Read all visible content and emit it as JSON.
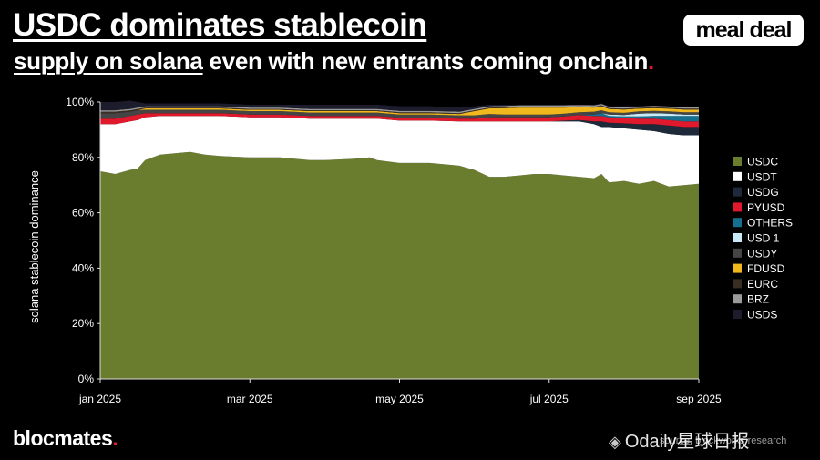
{
  "header": {
    "title_line1": "USDC dominates stablecoin",
    "title_line2_underlined": "supply on solana",
    "title_line2_rest": " even with new entrants coming onchain",
    "title_dot": "."
  },
  "logo_text": "meal deal",
  "footer": {
    "brand": "blocmates",
    "brand_dot": ".",
    "source": "source: blockworks research",
    "watermark": "Odaily星球日报",
    "watermark_icon": "binance-logo-icon"
  },
  "colors": {
    "USDC": "#6a7d2f",
    "USDT": "#ffffff",
    "USDG": "#1e2a3a",
    "PYUSD": "#e0192d",
    "OTHERS": "#156f8f",
    "USD 1": "#c7eaf6",
    "USDY": "#454545",
    "FDUSD": "#f0b81c",
    "EURC": "#3a2e23",
    "BRZ": "#9a9a9a",
    "USDS": "#1c1c2c"
  },
  "chart_data": {
    "type": "area",
    "stacked": true,
    "title": "USDC dominates stablecoin supply on solana even with new entrants coming onchain.",
    "ylabel": "solana stablecoin dominance",
    "xlabel": "",
    "xlim": [
      0,
      8
    ],
    "ylim": [
      0,
      100
    ],
    "x_ticks": [
      {
        "value": 0,
        "label": "jan 2025"
      },
      {
        "value": 2,
        "label": "mar 2025"
      },
      {
        "value": 4,
        "label": "may 2025"
      },
      {
        "value": 6,
        "label": "jul 2025"
      },
      {
        "value": 8,
        "label": "sep 2025"
      }
    ],
    "y_ticks": [
      {
        "value": 0,
        "label": "0%"
      },
      {
        "value": 20,
        "label": "20%"
      },
      {
        "value": 40,
        "label": "40%"
      },
      {
        "value": 60,
        "label": "60%"
      },
      {
        "value": 80,
        "label": "80%"
      },
      {
        "value": 100,
        "label": "100%"
      }
    ],
    "legend_position": "right",
    "x": [
      0,
      0.2,
      0.4,
      0.5,
      0.6,
      0.8,
      1.0,
      1.2,
      1.4,
      1.6,
      2.0,
      2.4,
      2.8,
      3.0,
      3.4,
      3.6,
      3.7,
      4.0,
      4.4,
      4.8,
      5.0,
      5.2,
      5.4,
      5.6,
      5.8,
      6.0,
      6.2,
      6.4,
      6.6,
      6.7,
      6.8,
      7.0,
      7.2,
      7.4,
      7.6,
      7.8,
      8.0
    ],
    "series": [
      {
        "name": "USDC",
        "values": [
          75,
          74,
          75.5,
          76,
          79,
          81,
          81.5,
          82,
          81,
          80.5,
          80,
          80,
          79,
          79,
          79.5,
          80,
          79,
          78,
          78,
          77,
          75.5,
          73,
          73,
          73.5,
          74,
          74,
          73.5,
          73,
          72.5,
          74,
          71,
          71.5,
          70.5,
          71.5,
          69.5,
          70,
          70.5
        ]
      },
      {
        "name": "USDT",
        "values": [
          17,
          18,
          17.5,
          17.5,
          15.5,
          14,
          13.5,
          13,
          14,
          14.5,
          14.5,
          14.5,
          15,
          15,
          14.5,
          14,
          15,
          15.3,
          15.3,
          16,
          17.5,
          20,
          20,
          19.5,
          19,
          19,
          19.5,
          20,
          19.5,
          17,
          20,
          19,
          19.5,
          18,
          19,
          18,
          17.5
        ]
      },
      {
        "name": "USDG",
        "values": [
          0,
          0,
          0,
          0,
          0,
          0,
          0,
          0,
          0,
          0,
          0,
          0,
          0,
          0,
          0,
          0,
          0,
          0,
          0,
          0,
          0,
          0,
          0,
          0,
          0,
          0,
          0.3,
          0.5,
          1,
          2,
          1.5,
          1.8,
          2,
          2.5,
          3,
          3,
          3
        ]
      },
      {
        "name": "PYUSD",
        "values": [
          2,
          2,
          2,
          2,
          1.5,
          1,
          1,
          1,
          1,
          1,
          1,
          1,
          1,
          1,
          1,
          1,
          1,
          1,
          1,
          1,
          1,
          1.5,
          1.5,
          1.5,
          1.5,
          1.5,
          1.5,
          1.8,
          2,
          2,
          2,
          2,
          2,
          2,
          2,
          2,
          2
        ]
      },
      {
        "name": "OTHERS",
        "values": [
          0,
          0,
          0,
          0,
          0,
          0,
          0,
          0,
          0,
          0,
          0,
          0,
          0,
          0,
          0,
          0,
          0,
          0,
          0,
          0,
          0,
          0,
          0,
          0,
          0,
          0,
          0,
          0,
          0.5,
          1,
          0.5,
          0.5,
          0.8,
          1,
          1.5,
          2,
          2
        ]
      },
      {
        "name": "USD 1",
        "values": [
          0,
          0,
          0,
          0,
          0,
          0,
          0,
          0,
          0,
          0,
          0,
          0,
          0,
          0,
          0,
          0,
          0,
          0,
          0,
          0,
          0,
          0,
          0,
          0,
          0,
          0,
          0,
          0,
          0,
          0,
          0.5,
          0.5,
          1,
          1,
          0.8,
          0.5,
          0.5
        ]
      },
      {
        "name": "USDY",
        "values": [
          2,
          2,
          1.5,
          1.5,
          1.2,
          1.2,
          1.2,
          1.2,
          1.2,
          1.2,
          1.2,
          1.2,
          1.2,
          1.2,
          1.2,
          1.2,
          1.2,
          1.2,
          1.2,
          1.2,
          1.2,
          1.2,
          1,
          1,
          1,
          1,
          1,
          1,
          1,
          1,
          0.8,
          0.8,
          0.8,
          0.8,
          0.8,
          0.8,
          0.8
        ]
      },
      {
        "name": "FDUSD",
        "values": [
          0,
          0,
          0,
          0,
          0.5,
          0.5,
          0.5,
          0.5,
          0.5,
          0.5,
          0.5,
          0.5,
          0.5,
          0.5,
          0.5,
          0.5,
          0.5,
          0.5,
          0.5,
          0.5,
          1.5,
          2,
          2.3,
          2.5,
          2.5,
          2.5,
          2.2,
          1.8,
          1.5,
          1.5,
          1.2,
          1.2,
          1,
          1,
          1,
          1,
          1
        ]
      },
      {
        "name": "EURC",
        "values": [
          0.5,
          0.5,
          0.5,
          0.5,
          0.3,
          0.3,
          0.3,
          0.3,
          0.3,
          0.3,
          0.3,
          0.3,
          0.3,
          0.3,
          0.3,
          0.3,
          0.3,
          0.3,
          0.3,
          0.3,
          0.3,
          0.3,
          0.3,
          0.3,
          0.3,
          0.3,
          0.3,
          0.3,
          0.3,
          0.3,
          0.3,
          0.3,
          0.3,
          0.3,
          0.3,
          0.3,
          0.3
        ]
      },
      {
        "name": "BRZ",
        "values": [
          0.5,
          0.5,
          0.5,
          0.5,
          0.5,
          0.5,
          0.5,
          0.5,
          0.5,
          0.5,
          0.5,
          0.5,
          0.5,
          0.5,
          0.5,
          0.5,
          0.5,
          0.5,
          0.5,
          0.5,
          0.5,
          0.5,
          0.5,
          0.5,
          0.5,
          0.5,
          0.5,
          0.5,
          0.5,
          0.5,
          0.5,
          0.5,
          0.5,
          0.5,
          0.5,
          0.5,
          0.5
        ]
      },
      {
        "name": "USDS",
        "values": [
          3,
          3,
          3,
          2,
          1,
          1,
          1,
          1,
          1,
          1,
          1,
          1,
          1.5,
          1.5,
          1.5,
          1.5,
          1.5,
          1.7,
          1.7,
          1.5,
          1,
          0.5,
          0.4,
          0.2,
          0.2,
          0.2,
          0.2,
          0.1,
          0.2,
          0.2,
          0.2,
          0.4,
          0.1,
          0,
          0,
          0,
          0
        ]
      }
    ]
  }
}
